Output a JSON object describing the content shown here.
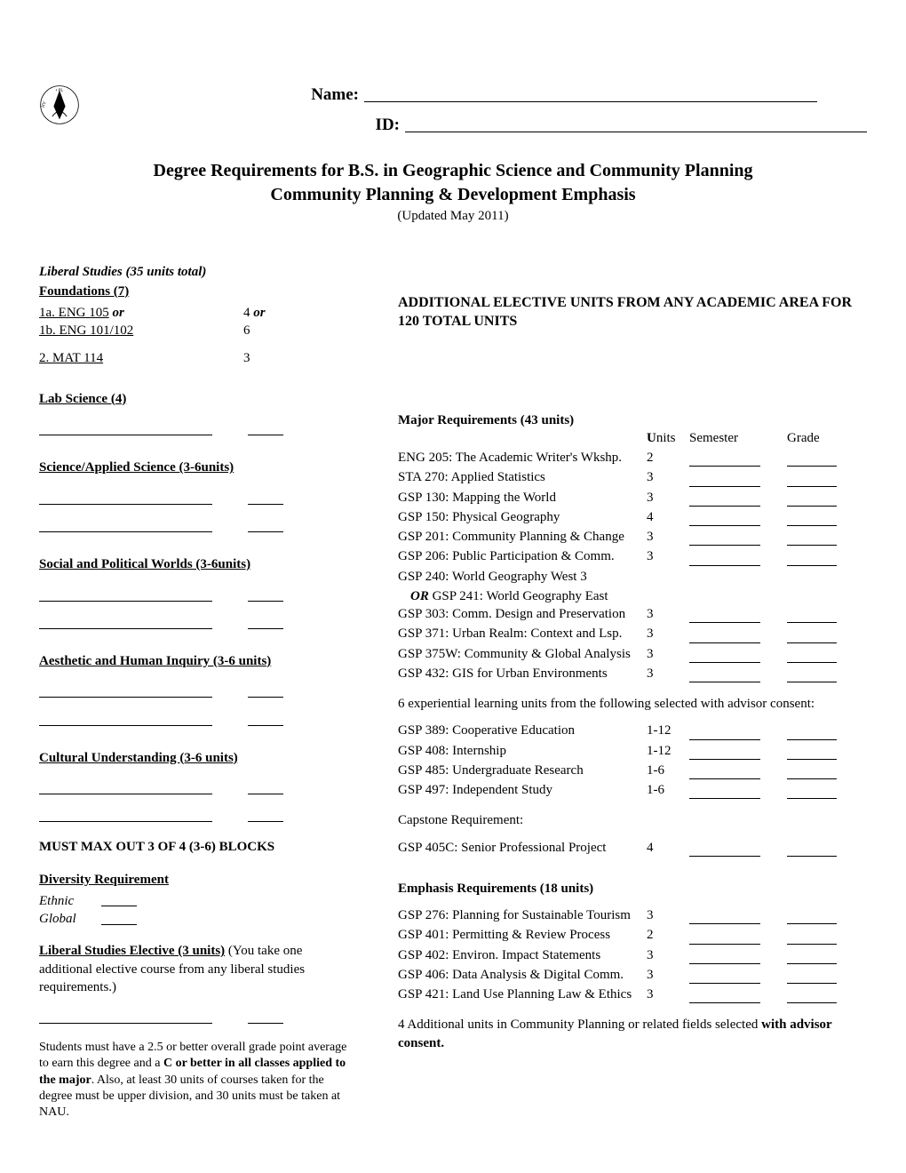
{
  "header": {
    "name_label": "Name:",
    "id_label": "ID:"
  },
  "title": {
    "line1": "Degree Requirements for B.S. in Geographic Science and Community Planning",
    "line2": "Community Planning & Development Emphasis",
    "updated": "(Updated May 2011)"
  },
  "liberal": {
    "title": "Liberal Studies (35 units total)",
    "foundations": {
      "head": "Foundations (7)",
      "rows": [
        {
          "label": "1a.      ENG 105",
          "suffix_italic": " or",
          "units": "4",
          "units_suffix_italic": "  or"
        },
        {
          "label": "1b.      ENG 101/102",
          "units": "6"
        },
        {
          "label": "2.       MAT 114",
          "units": "3",
          "gap_before": true
        }
      ]
    },
    "lab_science": {
      "head": "Lab Science (4)",
      "blanks": 1
    },
    "science_applied": {
      "head": "Science/Applied Science (3-6units)",
      "blanks": 2
    },
    "social_political": {
      "head": "Social and Political Worlds (3-6units)",
      "blanks": 2
    },
    "aesthetic": {
      "head": "Aesthetic and Human Inquiry (3-6 units)",
      "blanks": 2
    },
    "cultural": {
      "head": "Cultural Understanding (3-6 units)",
      "blanks": 2
    },
    "maxout": "MUST MAX OUT 3 OF 4 (3-6) BLOCKS",
    "diversity": {
      "head": "Diversity Requirement",
      "rows": [
        "Ethnic",
        "Global"
      ]
    },
    "elective": {
      "head": "Liberal Studies Elective (3 units)",
      "tail": " (You take one additional elective course from any liberal studies requirements.)"
    },
    "notes": {
      "p1a": "Students must have a 2.5 or better overall grade point average to earn this degree and a ",
      "p1b": "C or better in all classes applied to the major",
      "p1c": ".  Also, at least 30 units of courses taken for the degree must be upper division, and 30 units must be taken at NAU."
    }
  },
  "right": {
    "addl": "ADDITIONAL ELECTIVE UNITS FROM ANY ACADEMIC AREA FOR 120 TOTAL UNITS",
    "major_head": "Major Requirements (43 units)",
    "col_units": "Units",
    "col_sem": "Semester",
    "col_grade": "Grade",
    "major_courses": [
      {
        "name": "ENG 205: The Academic Writer's Wkshp.",
        "units": "2"
      },
      {
        "name": "STA 270: Applied Statistics",
        "units": "3"
      },
      {
        "name": "GSP 130: Mapping the World",
        "units": "3"
      },
      {
        "name": "GSP 150: Physical Geography",
        "units": "4"
      },
      {
        "name": "GSP 201: Community Planning & Change",
        "units": "3"
      },
      {
        "name": "GSP 206: Public Participation & Comm.",
        "units": "3"
      },
      {
        "name": "GSP 240: World Geography West   3",
        "units": "",
        "no_blanks": true
      },
      {
        "or_line": true,
        "or": "OR",
        "name": " GSP 241: World Geography East"
      },
      {
        "name": "GSP 303: Comm. Design and Preservation",
        "units": "3"
      },
      {
        "name": "GSP 371: Urban Realm: Context and Lsp.",
        "units": "3"
      },
      {
        "name": "GSP 375W: Community & Global Analysis",
        "units": "3"
      },
      {
        "name": "GSP 432: GIS for Urban Environments",
        "units": "3"
      }
    ],
    "exp_para": "6 experiential learning units from the following selected with advisor consent:",
    "exp_courses": [
      {
        "name": "GSP 389: Cooperative Education",
        "units": "1-12"
      },
      {
        "name": "GSP 408: Internship",
        "units": "1-12"
      },
      {
        "name": "GSP 485: Undergraduate Research",
        "units": "1-6"
      },
      {
        "name": "GSP 497: Independent Study",
        "units": "1-6"
      }
    ],
    "capstone_head": "Capstone Requirement:",
    "capstone_courses": [
      {
        "name": "GSP 405C: Senior Professional Project",
        "units": "4"
      }
    ],
    "emphasis_head": "Emphasis Requirements (18 units)",
    "emphasis_courses": [
      {
        "name": "GSP 276: Planning for Sustainable Tourism",
        "units": "3"
      },
      {
        "name": "GSP 401: Permitting & Review Process",
        "units": "2"
      },
      {
        "name": "GSP 402: Environ. Impact Statements",
        "units": "3"
      },
      {
        "name": "GSP 406: Data Analysis & Digital Comm.",
        "units": "3"
      },
      {
        "name": "GSP 421: Land Use Planning Law & Ethics",
        "units": "3"
      }
    ],
    "addl_units_a": "4 Additional units in Community Planning or related fields selected ",
    "addl_units_b": "with advisor consent."
  }
}
